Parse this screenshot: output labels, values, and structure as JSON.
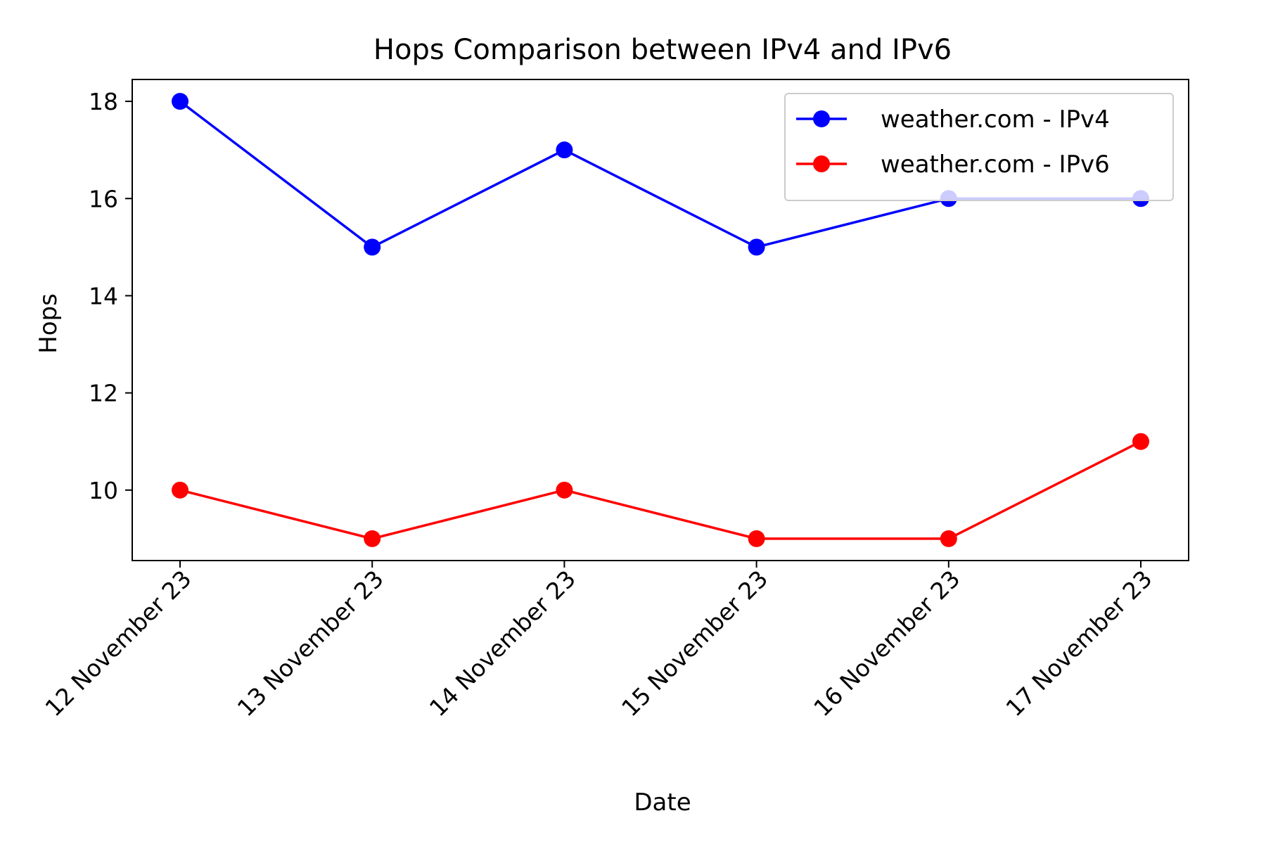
{
  "chart_data": {
    "type": "line",
    "title": "Hops Comparison between IPv4 and IPv6",
    "xlabel": "Date",
    "ylabel": "Hops",
    "categories": [
      "12 November 23",
      "13 November 23",
      "14 November 23",
      "15 November 23",
      "16 November 23",
      "17 November 23"
    ],
    "ylim": [
      8.55,
      18.45
    ],
    "yticks": [
      10,
      12,
      14,
      16,
      18
    ],
    "grid": false,
    "legend_position": "top-right",
    "series": [
      {
        "name": "weather.com - IPv4",
        "color": "#0000ff",
        "marker": "circle",
        "values": [
          18,
          15,
          17,
          15,
          16,
          16
        ]
      },
      {
        "name": "weather.com - IPv6",
        "color": "#ff0000",
        "marker": "circle",
        "values": [
          10,
          9,
          10,
          9,
          9,
          11
        ]
      }
    ]
  }
}
